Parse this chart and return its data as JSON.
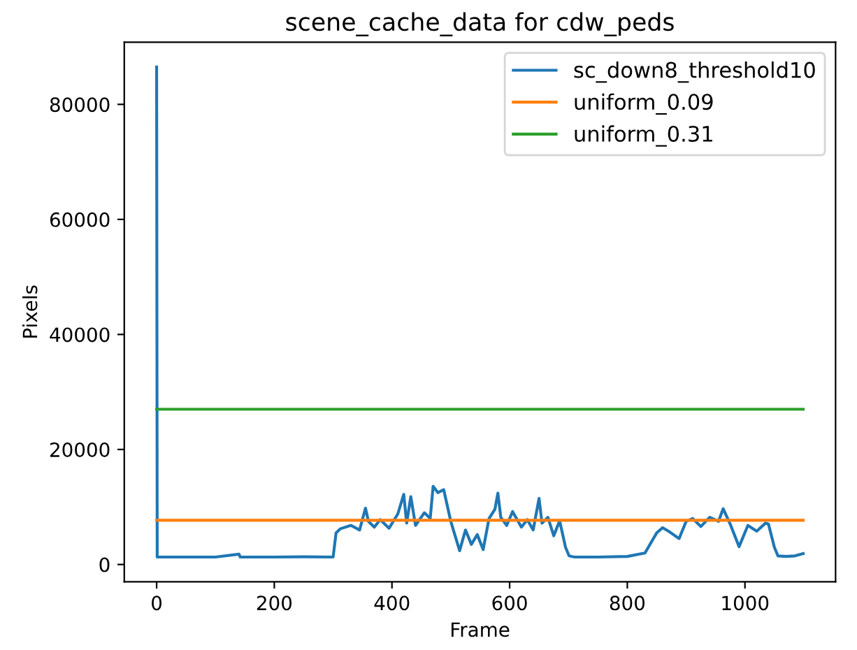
{
  "chart_data": {
    "type": "line",
    "title": "scene_cache_data for cdw_peds",
    "xlabel": "Frame",
    "ylabel": "Pixels",
    "xlim": [
      -55,
      1154
    ],
    "ylim": [
      -3000,
      90800
    ],
    "xticks": [
      0,
      200,
      400,
      600,
      800,
      1000
    ],
    "yticks": [
      0,
      20000,
      40000,
      60000,
      80000
    ],
    "legend": "top right",
    "grid": false,
    "series": [
      {
        "name": "sc_down8_threshold10",
        "color": "#1f77b4",
        "x": [
          0,
          1,
          50,
          100,
          140,
          142,
          200,
          250,
          300,
          305,
          312,
          330,
          345,
          355,
          360,
          370,
          380,
          395,
          410,
          420,
          425,
          432,
          440,
          455,
          465,
          470,
          478,
          488,
          500,
          507,
          515,
          525,
          535,
          545,
          555,
          565,
          575,
          580,
          585,
          595,
          605,
          620,
          630,
          640,
          650,
          655,
          665,
          675,
          685,
          695,
          701,
          710,
          750,
          800,
          830,
          850,
          860,
          870,
          888,
          900,
          911,
          925,
          940,
          955,
          963,
          975,
          990,
          1005,
          1020,
          1035,
          1040,
          1050,
          1056,
          1070,
          1085,
          1099
        ],
        "values": [
          86500,
          1300,
          1300,
          1300,
          1800,
          1300,
          1300,
          1350,
          1300,
          5500,
          6200,
          6800,
          6000,
          9800,
          7500,
          6500,
          7800,
          6300,
          8800,
          12200,
          7200,
          11800,
          6800,
          9000,
          8000,
          13600,
          12500,
          13000,
          7500,
          5100,
          2400,
          6000,
          3500,
          5200,
          2600,
          8000,
          9600,
          12400,
          8200,
          6800,
          9200,
          6500,
          7800,
          6000,
          11500,
          7200,
          8200,
          5000,
          7600,
          3000,
          1500,
          1300,
          1300,
          1400,
          2000,
          5500,
          6400,
          5800,
          4500,
          7500,
          8000,
          6600,
          8200,
          7500,
          9700,
          7000,
          3100,
          6800,
          5800,
          7200,
          7000,
          3000,
          1500,
          1400,
          1500,
          1900
        ]
      },
      {
        "name": "uniform_0.09",
        "color": "#ff7f0e",
        "x": [
          0,
          1099
        ],
        "values": [
          7700,
          7700
        ]
      },
      {
        "name": "uniform_0.31",
        "color": "#2ca02c",
        "x": [
          0,
          1099
        ],
        "values": [
          27000,
          27000
        ]
      }
    ]
  }
}
